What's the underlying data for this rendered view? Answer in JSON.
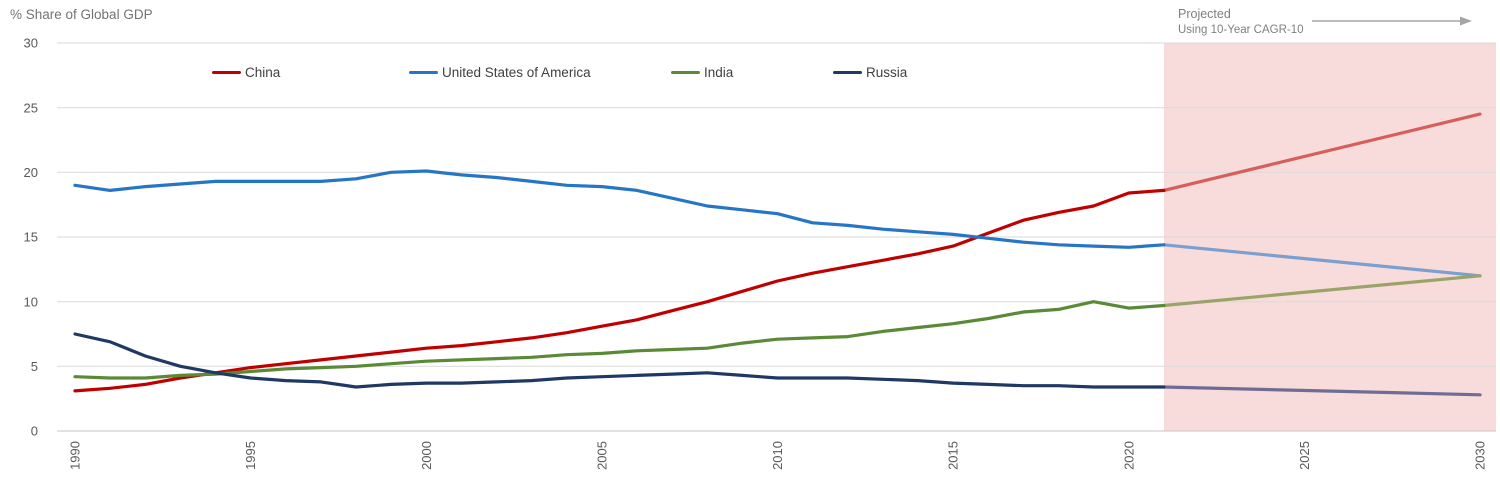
{
  "header": {
    "title": "% Share of Global GDP",
    "projected_label": "Projected",
    "projected_sublabel": "Using 10-Year CAGR-10"
  },
  "chart_data": {
    "type": "line",
    "title": "% Share of Global GDP",
    "ylabel": "% Share of Global GDP",
    "xlabel": "",
    "ylim": [
      0,
      30
    ],
    "yticks": [
      0,
      5,
      10,
      15,
      20,
      25,
      30
    ],
    "xticks": [
      1990,
      1995,
      2000,
      2005,
      2010,
      2015,
      2020,
      2025,
      2030
    ],
    "grid": true,
    "legend_position": "top",
    "projection": {
      "label": "Projected",
      "sublabel": "Using 10-Year CAGR-10",
      "start_year": 2021,
      "end_year": 2030,
      "band_color": "#F8DCDB"
    },
    "years": [
      1990,
      1991,
      1992,
      1993,
      1994,
      1995,
      1996,
      1997,
      1998,
      1999,
      2000,
      2001,
      2002,
      2003,
      2004,
      2005,
      2006,
      2007,
      2008,
      2009,
      2010,
      2011,
      2012,
      2013,
      2014,
      2015,
      2016,
      2017,
      2018,
      2019,
      2020,
      2021
    ],
    "series": [
      {
        "name": "China",
        "slug": "china",
        "color": "#C00000",
        "proj_color": "#D65F5C",
        "values": [
          3.1,
          3.3,
          3.6,
          4.1,
          4.5,
          4.9,
          5.2,
          5.5,
          5.8,
          6.1,
          6.4,
          6.6,
          6.9,
          7.2,
          7.6,
          8.1,
          8.6,
          9.3,
          10.0,
          10.8,
          11.6,
          12.2,
          12.7,
          13.2,
          13.7,
          14.3,
          15.3,
          16.3,
          16.9,
          17.4,
          18.4,
          18.6
        ],
        "projected_2030": 24.5
      },
      {
        "name": "United States of America",
        "slug": "usa",
        "color": "#2776C6",
        "proj_color": "#7B9FCF",
        "values": [
          19.0,
          18.6,
          18.9,
          19.1,
          19.3,
          19.3,
          19.3,
          19.3,
          19.5,
          20.0,
          20.1,
          19.8,
          19.6,
          19.3,
          19.0,
          18.9,
          18.6,
          18.0,
          17.4,
          17.1,
          16.8,
          16.1,
          15.9,
          15.6,
          15.4,
          15.2,
          14.9,
          14.6,
          14.4,
          14.3,
          14.2,
          14.4
        ],
        "projected_2030": 12.0
      },
      {
        "name": "India",
        "slug": "india",
        "color": "#5A8A35",
        "proj_color": "#9BA468",
        "values": [
          4.2,
          4.1,
          4.1,
          4.3,
          4.4,
          4.6,
          4.8,
          4.9,
          5.0,
          5.2,
          5.4,
          5.5,
          5.6,
          5.7,
          5.9,
          6.0,
          6.2,
          6.3,
          6.4,
          6.8,
          7.1,
          7.2,
          7.3,
          7.7,
          8.0,
          8.3,
          8.7,
          9.2,
          9.4,
          10.0,
          9.5,
          9.7
        ],
        "projected_2030": 12.0
      },
      {
        "name": "Russia",
        "slug": "russia",
        "color": "#1F3864",
        "proj_color": "#6F6D96",
        "values": [
          7.5,
          6.9,
          5.8,
          5.0,
          4.5,
          4.1,
          3.9,
          3.8,
          3.4,
          3.6,
          3.7,
          3.7,
          3.8,
          3.9,
          4.1,
          4.2,
          4.3,
          4.4,
          4.5,
          4.3,
          4.1,
          4.1,
          4.1,
          4.0,
          3.9,
          3.7,
          3.6,
          3.5,
          3.5,
          3.4,
          3.4,
          3.4
        ],
        "projected_2030": 2.8
      }
    ]
  }
}
